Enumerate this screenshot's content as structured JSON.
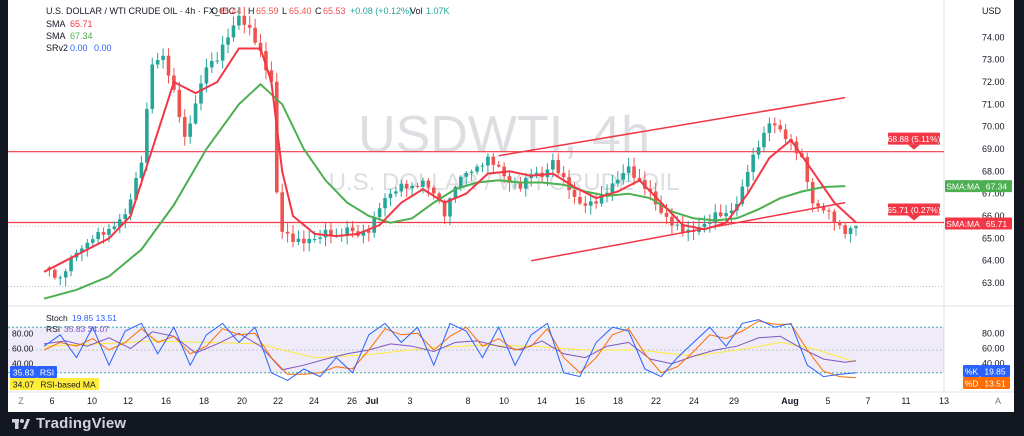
{
  "header": {
    "symbol": "U.S. DOLLAR / WTI CRUDE OIL · 4h · FX_IDC",
    "ohlc_o_label": "O",
    "ohlc_o": "65.44",
    "ohlc_h_label": "H",
    "ohlc_h": "65.59",
    "ohlc_l_label": "L",
    "ohlc_l": "65.40",
    "ohlc_c_label": "C",
    "ohlc_c": "65.53",
    "change": "+0.08 (+0.12%)",
    "vol_label": "Vol",
    "vol": "1.07K",
    "currency": "USD"
  },
  "indicators": {
    "sma1_label": "SMA",
    "sma1_value": "65.71",
    "sma2_label": "SMA",
    "sma2_value": "67.34",
    "srv2_label": "SRv2",
    "srv2_v1": "0.00",
    "srv2_v2": "0.00"
  },
  "watermark": {
    "title": "USDWTI, 4h",
    "subtitle": "U.S. DOLLAR / WTI CRUDE OIL"
  },
  "price_axis": {
    "ticks": [
      "74.00",
      "73.00",
      "72.00",
      "71.00",
      "70.00",
      "69.00",
      "68.00",
      "67.00",
      "66.00",
      "65.00",
      "64.00",
      "63.00"
    ],
    "labels": {
      "upper_res": "68.88 (5.11%)",
      "sma_long_tag": "SMA:MA",
      "sma_long_val": "67.34",
      "lower_res": "65.71 (0.27%)",
      "sma_short_tag": "SMA:MA",
      "sma_short_val": "65.71"
    }
  },
  "osc_panel": {
    "stoch_label": "Stoch",
    "stoch_vals": "19.85 13.51",
    "rsi_label": "RSI",
    "rsi_vals": "35.83 34.07",
    "ticks": [
      "80.00",
      "60.00",
      "40.00"
    ],
    "left_ticks": [
      "80.00",
      "60.00",
      "40.00"
    ],
    "tags": [
      {
        "val": "35.83",
        "name": "RSI",
        "color": "#2962ff",
        "text": "#ffffff"
      },
      {
        "val": "34.07",
        "name": "RSI-based MA",
        "color": "#ffeb3b",
        "text": "#131722"
      },
      {
        "val": "19.85",
        "name": "%K",
        "color": "#2962ff",
        "text": "#ffffff"
      },
      {
        "val": "13.51",
        "name": "%D",
        "color": "#ff6d00",
        "text": "#ffffff"
      }
    ]
  },
  "time_axis": {
    "labels": [
      "6",
      "10",
      "12",
      "16",
      "18",
      "20",
      "22",
      "24",
      "26",
      "Jul",
      "3",
      "8",
      "10",
      "14",
      "16",
      "18",
      "22",
      "24",
      "29",
      "Aug",
      "5",
      "7",
      "11",
      "13"
    ],
    "bold": [
      "Jul",
      "Aug"
    ]
  },
  "footer": {
    "brand": "TradingView"
  },
  "colors": {
    "up": "#26a69a",
    "down": "#ef5350",
    "sma_fast": "#f23645",
    "sma_slow": "#4caf50",
    "channel": "#f23645",
    "rsi": "#7e57c2",
    "stoch_k": "#2962ff",
    "stoch_d": "#ff6d00",
    "rsi_ma": "#ffeb3b"
  },
  "chart_data": {
    "type": "candlestick",
    "title": "U.S. DOLLAR / WTI CRUDE OIL · 4h · FX_IDC",
    "y_range": [
      62.6,
      75.4
    ],
    "x_labels": [
      "6",
      "10",
      "12",
      "16",
      "18",
      "20",
      "22",
      "24",
      "26",
      "Jul",
      "3",
      "8",
      "10",
      "14",
      "16",
      "18",
      "22",
      "24",
      "29",
      "Aug",
      "5",
      "7",
      "11",
      "13"
    ],
    "price_path": [
      [
        0,
        63.7
      ],
      [
        3,
        63.2
      ],
      [
        6,
        64.4
      ],
      [
        9,
        65.0
      ],
      [
        12,
        65.4
      ],
      [
        15,
        66.0
      ],
      [
        18,
        68.5
      ],
      [
        20,
        72.8
      ],
      [
        22,
        73.2
      ],
      [
        24,
        71.5
      ],
      [
        26,
        69.5
      ],
      [
        28,
        71.0
      ],
      [
        30,
        72.7
      ],
      [
        32,
        73.1
      ],
      [
        34,
        74.0
      ],
      [
        36,
        75.0
      ],
      [
        38,
        74.3
      ],
      [
        40,
        73.3
      ],
      [
        42,
        72.0
      ],
      [
        43,
        67.0
      ],
      [
        44,
        65.3
      ],
      [
        46,
        65.0
      ],
      [
        48,
        64.8
      ],
      [
        50,
        65.0
      ],
      [
        52,
        65.3
      ],
      [
        54,
        65.0
      ],
      [
        56,
        65.5
      ],
      [
        58,
        65.1
      ],
      [
        60,
        65.4
      ],
      [
        62,
        66.4
      ],
      [
        64,
        67.0
      ],
      [
        66,
        67.4
      ],
      [
        68,
        67.2
      ],
      [
        70,
        67.6
      ],
      [
        72,
        67.0
      ],
      [
        74,
        66.1
      ],
      [
        76,
        67.4
      ],
      [
        78,
        67.9
      ],
      [
        80,
        68.2
      ],
      [
        82,
        68.5
      ],
      [
        84,
        68.2
      ],
      [
        86,
        67.5
      ],
      [
        88,
        67.3
      ],
      [
        90,
        68.0
      ],
      [
        92,
        67.7
      ],
      [
        94,
        68.5
      ],
      [
        96,
        67.6
      ],
      [
        98,
        66.8
      ],
      [
        100,
        66.5
      ],
      [
        102,
        66.6
      ],
      [
        104,
        67.2
      ],
      [
        106,
        67.6
      ],
      [
        108,
        68.2
      ],
      [
        110,
        67.5
      ],
      [
        112,
        67.0
      ],
      [
        114,
        66.2
      ],
      [
        116,
        65.6
      ],
      [
        118,
        65.4
      ],
      [
        120,
        65.3
      ],
      [
        122,
        65.6
      ],
      [
        124,
        66.1
      ],
      [
        126,
        66.0
      ],
      [
        128,
        66.6
      ],
      [
        130,
        68.0
      ],
      [
        132,
        69.2
      ],
      [
        134,
        70.2
      ],
      [
        136,
        69.8
      ],
      [
        138,
        69.3
      ],
      [
        140,
        68.5
      ],
      [
        142,
        66.6
      ],
      [
        144,
        66.3
      ],
      [
        146,
        65.8
      ],
      [
        148,
        65.3
      ],
      [
        150,
        65.53
      ]
    ],
    "series": [
      {
        "name": "SMA",
        "value": 65.71,
        "values": [
          [
            0,
            63.5
          ],
          [
            4,
            64.0
          ],
          [
            8,
            64.5
          ],
          [
            12,
            65.0
          ],
          [
            16,
            66.0
          ],
          [
            20,
            69.0
          ],
          [
            24,
            72.0
          ],
          [
            28,
            71.5
          ],
          [
            32,
            72.0
          ],
          [
            36,
            73.5
          ],
          [
            40,
            73.5
          ],
          [
            42,
            72.0
          ],
          [
            44,
            68.0
          ],
          [
            46,
            66.0
          ],
          [
            50,
            65.2
          ],
          [
            54,
            65.1
          ],
          [
            58,
            65.2
          ],
          [
            62,
            65.6
          ],
          [
            66,
            66.6
          ],
          [
            70,
            67.2
          ],
          [
            74,
            66.6
          ],
          [
            78,
            67.0
          ],
          [
            82,
            67.9
          ],
          [
            86,
            68.0
          ],
          [
            90,
            67.8
          ],
          [
            94,
            67.9
          ],
          [
            98,
            67.3
          ],
          [
            102,
            66.8
          ],
          [
            106,
            67.1
          ],
          [
            110,
            67.6
          ],
          [
            114,
            66.6
          ],
          [
            118,
            65.6
          ],
          [
            122,
            65.4
          ],
          [
            126,
            65.7
          ],
          [
            130,
            67.0
          ],
          [
            134,
            68.6
          ],
          [
            138,
            69.4
          ],
          [
            142,
            68.0
          ],
          [
            146,
            66.6
          ],
          [
            150,
            65.71
          ]
        ]
      },
      {
        "name": "SMA",
        "value": 67.34,
        "values": [
          [
            0,
            62.3
          ],
          [
            6,
            62.7
          ],
          [
            12,
            63.3
          ],
          [
            18,
            64.5
          ],
          [
            24,
            66.5
          ],
          [
            30,
            69.0
          ],
          [
            36,
            71.0
          ],
          [
            40,
            71.9
          ],
          [
            44,
            71.0
          ],
          [
            48,
            69.0
          ],
          [
            52,
            67.6
          ],
          [
            56,
            66.6
          ],
          [
            60,
            66.0
          ],
          [
            64,
            65.7
          ],
          [
            68,
            65.9
          ],
          [
            72,
            66.6
          ],
          [
            76,
            67.2
          ],
          [
            80,
            67.5
          ],
          [
            84,
            67.6
          ],
          [
            88,
            67.5
          ],
          [
            92,
            67.5
          ],
          [
            96,
            67.4
          ],
          [
            100,
            67.1
          ],
          [
            104,
            66.9
          ],
          [
            108,
            67.0
          ],
          [
            112,
            66.8
          ],
          [
            116,
            66.2
          ],
          [
            120,
            65.9
          ],
          [
            124,
            65.8
          ],
          [
            128,
            65.9
          ],
          [
            132,
            66.3
          ],
          [
            136,
            66.8
          ],
          [
            140,
            67.1
          ],
          [
            144,
            67.3
          ],
          [
            148,
            67.34
          ]
        ]
      }
    ],
    "levels": [
      68.88,
      65.71
    ],
    "channel_upper": [
      [
        84,
        68.7
      ],
      [
        148,
        71.3
      ]
    ],
    "channel_lower": [
      [
        90,
        64.0
      ],
      [
        148,
        66.6
      ]
    ],
    "oscillator": {
      "y_range": [
        0,
        100
      ],
      "rsi": 35.83,
      "rsi_ma": 34.07,
      "stoch_k": 19.85,
      "stoch_d": 13.51,
      "bands": [
        80,
        20
      ],
      "rsi_path": [
        [
          0,
          58
        ],
        [
          4,
          62
        ],
        [
          8,
          55
        ],
        [
          12,
          66
        ],
        [
          16,
          52
        ],
        [
          20,
          74
        ],
        [
          24,
          68
        ],
        [
          28,
          46
        ],
        [
          32,
          58
        ],
        [
          36,
          72
        ],
        [
          40,
          55
        ],
        [
          44,
          24
        ],
        [
          48,
          30
        ],
        [
          52,
          38
        ],
        [
          56,
          45
        ],
        [
          60,
          50
        ],
        [
          64,
          58
        ],
        [
          68,
          55
        ],
        [
          72,
          48
        ],
        [
          76,
          60
        ],
        [
          80,
          62
        ],
        [
          84,
          55
        ],
        [
          88,
          50
        ],
        [
          92,
          62
        ],
        [
          96,
          45
        ],
        [
          100,
          40
        ],
        [
          104,
          55
        ],
        [
          108,
          60
        ],
        [
          112,
          38
        ],
        [
          116,
          32
        ],
        [
          120,
          42
        ],
        [
          124,
          50
        ],
        [
          128,
          55
        ],
        [
          132,
          66
        ],
        [
          136,
          68
        ],
        [
          140,
          52
        ],
        [
          144,
          38
        ],
        [
          148,
          34
        ],
        [
          150,
          35.83
        ]
      ],
      "rsi_ma_path": [
        [
          0,
          55
        ],
        [
          10,
          58
        ],
        [
          20,
          62
        ],
        [
          30,
          60
        ],
        [
          40,
          58
        ],
        [
          44,
          50
        ],
        [
          50,
          40
        ],
        [
          60,
          44
        ],
        [
          70,
          52
        ],
        [
          80,
          56
        ],
        [
          90,
          55
        ],
        [
          100,
          50
        ],
        [
          110,
          50
        ],
        [
          120,
          42
        ],
        [
          130,
          52
        ],
        [
          136,
          60
        ],
        [
          142,
          52
        ],
        [
          150,
          34.07
        ]
      ],
      "stoch_k_path": [
        [
          0,
          55
        ],
        [
          3,
          70
        ],
        [
          6,
          40
        ],
        [
          9,
          80
        ],
        [
          12,
          30
        ],
        [
          15,
          75
        ],
        [
          18,
          85
        ],
        [
          21,
          45
        ],
        [
          24,
          80
        ],
        [
          27,
          30
        ],
        [
          30,
          70
        ],
        [
          33,
          85
        ],
        [
          36,
          60
        ],
        [
          39,
          80
        ],
        [
          42,
          20
        ],
        [
          45,
          10
        ],
        [
          48,
          25
        ],
        [
          51,
          15
        ],
        [
          54,
          40
        ],
        [
          57,
          20
        ],
        [
          60,
          70
        ],
        [
          63,
          85
        ],
        [
          66,
          60
        ],
        [
          69,
          80
        ],
        [
          72,
          30
        ],
        [
          75,
          85
        ],
        [
          78,
          75
        ],
        [
          81,
          40
        ],
        [
          84,
          80
        ],
        [
          87,
          30
        ],
        [
          90,
          70
        ],
        [
          93,
          85
        ],
        [
          96,
          20
        ],
        [
          99,
          15
        ],
        [
          102,
          60
        ],
        [
          105,
          80
        ],
        [
          108,
          75
        ],
        [
          111,
          25
        ],
        [
          114,
          15
        ],
        [
          117,
          40
        ],
        [
          120,
          60
        ],
        [
          123,
          80
        ],
        [
          126,
          55
        ],
        [
          129,
          85
        ],
        [
          132,
          90
        ],
        [
          135,
          80
        ],
        [
          138,
          85
        ],
        [
          141,
          30
        ],
        [
          144,
          15
        ],
        [
          147,
          18
        ],
        [
          150,
          19.85
        ]
      ],
      "stoch_d_path": [
        [
          0,
          50
        ],
        [
          3,
          60
        ],
        [
          6,
          55
        ],
        [
          9,
          65
        ],
        [
          12,
          50
        ],
        [
          15,
          60
        ],
        [
          18,
          78
        ],
        [
          21,
          60
        ],
        [
          24,
          68
        ],
        [
          27,
          45
        ],
        [
          30,
          55
        ],
        [
          33,
          78
        ],
        [
          36,
          70
        ],
        [
          39,
          72
        ],
        [
          42,
          40
        ],
        [
          45,
          18
        ],
        [
          48,
          18
        ],
        [
          51,
          20
        ],
        [
          54,
          28
        ],
        [
          57,
          25
        ],
        [
          60,
          50
        ],
        [
          63,
          78
        ],
        [
          66,
          70
        ],
        [
          69,
          72
        ],
        [
          72,
          50
        ],
        [
          75,
          68
        ],
        [
          78,
          80
        ],
        [
          81,
          55
        ],
        [
          84,
          65
        ],
        [
          87,
          50
        ],
        [
          90,
          55
        ],
        [
          93,
          78
        ],
        [
          96,
          40
        ],
        [
          99,
          20
        ],
        [
          102,
          40
        ],
        [
          105,
          70
        ],
        [
          108,
          78
        ],
        [
          111,
          45
        ],
        [
          114,
          20
        ],
        [
          117,
          28
        ],
        [
          120,
          48
        ],
        [
          123,
          70
        ],
        [
          126,
          65
        ],
        [
          129,
          75
        ],
        [
          132,
          88
        ],
        [
          135,
          84
        ],
        [
          138,
          84
        ],
        [
          141,
          50
        ],
        [
          144,
          22
        ],
        [
          147,
          15
        ],
        [
          150,
          13.51
        ]
      ]
    }
  }
}
